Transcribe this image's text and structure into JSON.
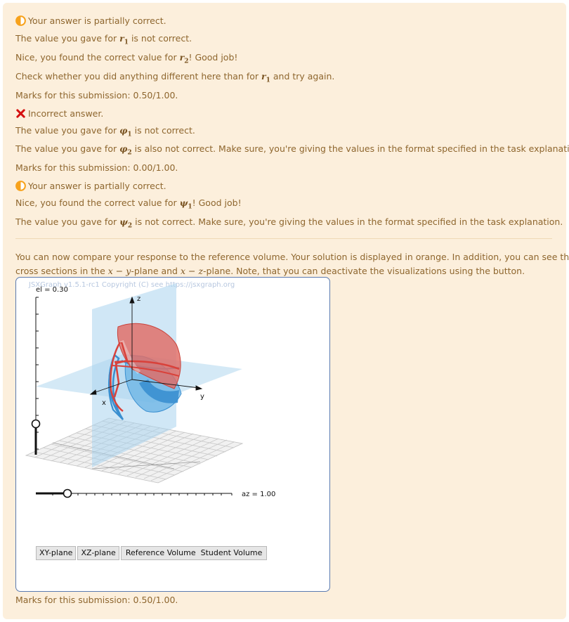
{
  "feedback": {
    "part1": {
      "status": "Your answer is partially correct.",
      "line1_pre": "The value you gave for",
      "line1_var": "r",
      "line1_sub": "1",
      "line1_post": "is not correct.",
      "line2_pre": "Nice, you found the correct value for",
      "line2_var": "r",
      "line2_sub": "2",
      "line2_post": "! Good job!",
      "line3_pre": "Check whether you did anything different here than for",
      "line3_var": "r",
      "line3_sub": "1",
      "line3_post": "and try again.",
      "marks": "Marks for this submission: 0.50/1.00."
    },
    "part2": {
      "status": "Incorrect answer.",
      "line1_pre": "The value you gave for",
      "line1_var": "φ",
      "line1_sub": "1",
      "line1_post": "is not correct.",
      "line2_pre": "The value you gave for",
      "line2_var": "φ",
      "line2_sub": "2",
      "line2_post": "is also not correct. Make sure, you're giving the values in the format specified in the task explanation.",
      "marks": "Marks for this submission: 0.00/1.00."
    },
    "part3": {
      "status": "Your answer is partially correct.",
      "line1_pre": "Nice, you found the correct value for",
      "line1_var": "ψ",
      "line1_sub": "1",
      "line1_post": "! Good job!",
      "line2_pre": "The value you gave for",
      "line2_var": "ψ",
      "line2_sub": "2",
      "line2_post": "is not correct. Make sure, you're giving the values in the format specified in the task explanation."
    },
    "compare": {
      "line1": "You can now compare your response to the reference volume. Your solution is displayed in orange. In addition, you can see the",
      "line2_pre": "cross sections in the",
      "line2_math1": "x − y",
      "line2_mid": "-plane and",
      "line2_math2": "x − z",
      "line2_post": "-plane. Note, that you can deactivate the visualizations using the button."
    },
    "final_marks": "Marks for this submission: 0.50/1.00."
  },
  "board": {
    "copyright": "JSXGraph v1.5.1-rc1 Copyright (C) see https://jsxgraph.org",
    "el_label": "el = 0.30",
    "az_label": "az = 1.00",
    "el_value": 0.3,
    "az_value": 1.0,
    "axis_x": "x",
    "axis_y": "y",
    "axis_z": "z",
    "buttons": [
      "XY-plane",
      "XZ-plane",
      "Reference Volume",
      "Student Volume"
    ]
  },
  "colors": {
    "partial": "#f7a21c",
    "incorrect": "#d51010",
    "text": "#8e662e",
    "orange_volume": "#d9413a",
    "blue_volume": "#3a8fd0"
  },
  "icons": {
    "partial": "half-circle-icon",
    "incorrect": "cross-icon"
  }
}
